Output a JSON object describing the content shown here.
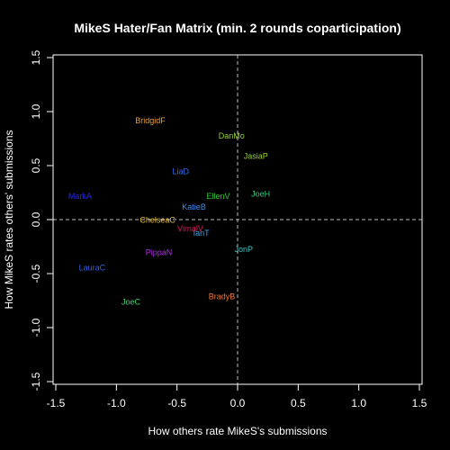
{
  "chart_data": {
    "type": "scatter",
    "title": "MikeS Hater/Fan Matrix (min. 2 rounds coparticipation)",
    "xlabel": "How others rate MikeS's submissions",
    "ylabel": "How MikeS rates others' submissions",
    "xlim": [
      -1.5,
      1.5
    ],
    "ylim": [
      -1.5,
      1.5
    ],
    "xticks": [
      -1.5,
      -1.0,
      -0.5,
      0.0,
      0.5,
      1.0,
      1.5
    ],
    "yticks": [
      -1.5,
      -1.0,
      -0.5,
      0.0,
      0.5,
      1.0,
      1.5
    ],
    "xtick_labels": [
      "-1.5",
      "-1.0",
      "-0.5",
      "0.0",
      "0.5",
      "1.0",
      "1.5"
    ],
    "ytick_labels": [
      "-1.5",
      "-1.0",
      "-0.5",
      "0.0",
      "0.5",
      "1.0",
      "1.5"
    ],
    "reference_lines": {
      "x": 0,
      "y": 0,
      "style": "dashed",
      "color": "#bbbbbb"
    },
    "background": "#000000",
    "foreground": "#ffffff",
    "points": [
      {
        "label": "BridgidF",
        "x": -0.72,
        "y": 0.92,
        "color": "#f0a030"
      },
      {
        "label": "DanMo",
        "x": -0.05,
        "y": 0.78,
        "color": "#9ad42a"
      },
      {
        "label": "JasiaP",
        "x": 0.15,
        "y": 0.59,
        "color": "#9ad42a"
      },
      {
        "label": "LiaD",
        "x": -0.47,
        "y": 0.45,
        "color": "#3a6cf4"
      },
      {
        "label": "MarkA",
        "x": -1.3,
        "y": 0.22,
        "color": "#2a2ae0"
      },
      {
        "label": "EllenV",
        "x": -0.16,
        "y": 0.22,
        "color": "#2ec82e"
      },
      {
        "label": "JoeH",
        "x": 0.19,
        "y": 0.24,
        "color": "#2ec880"
      },
      {
        "label": "KatieB",
        "x": -0.36,
        "y": 0.12,
        "color": "#3a8cf4"
      },
      {
        "label": "ChelseaC",
        "x": -0.66,
        "y": 0.0,
        "color": "#e8c030"
      },
      {
        "label": "VirnalV",
        "x": -0.39,
        "y": -0.08,
        "color": "#e02060"
      },
      {
        "label": "IanT",
        "x": -0.3,
        "y": -0.12,
        "color": "#38a8f0"
      },
      {
        "label": "JonP",
        "x": 0.05,
        "y": -0.27,
        "color": "#30c8c8"
      },
      {
        "label": "PippaN",
        "x": -0.65,
        "y": -0.3,
        "color": "#b030e8"
      },
      {
        "label": "LauraC",
        "x": -1.2,
        "y": -0.44,
        "color": "#3060f0"
      },
      {
        "label": "BradyB",
        "x": -0.13,
        "y": -0.71,
        "color": "#f07830"
      },
      {
        "label": "JoeC",
        "x": -0.88,
        "y": -0.76,
        "color": "#38d070"
      }
    ]
  }
}
